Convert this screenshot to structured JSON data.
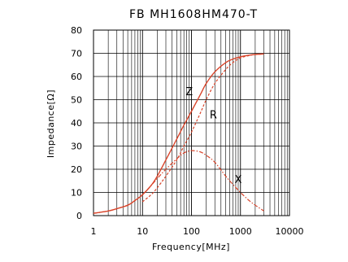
{
  "chart_data": {
    "type": "line",
    "title": "FB  MH1608HM470-T",
    "xlabel": "Frequency[MHz]",
    "ylabel": "Impedance[Ω]",
    "xscale": "log",
    "xlim": [
      1,
      10000
    ],
    "ylim": [
      0,
      80
    ],
    "x_ticks": [
      1,
      10,
      100,
      1000,
      10000
    ],
    "x_tick_labels": [
      "1",
      "10",
      "100",
      "1000",
      "10000"
    ],
    "y_ticks": [
      0,
      10,
      20,
      30,
      40,
      50,
      60,
      70,
      80
    ],
    "y_tick_labels": [
      "0",
      "10",
      "20",
      "30",
      "40",
      "50",
      "60",
      "70",
      "80"
    ],
    "grid": true,
    "legend": "inline labels",
    "colors": {
      "series": "#d9442a",
      "grid": "#000000"
    },
    "series": [
      {
        "name": "Z",
        "style": "solid",
        "x": [
          1,
          2,
          3,
          5,
          7,
          10,
          15,
          20,
          30,
          50,
          70,
          100,
          150,
          200,
          300,
          500,
          700,
          1000,
          1500,
          2000,
          3000
        ],
        "values": [
          1,
          2,
          3,
          4.5,
          6.5,
          9,
          13,
          17,
          24,
          33,
          39,
          45,
          52,
          57,
          62,
          66,
          67.5,
          68.5,
          69.2,
          69.5,
          69.7
        ]
      },
      {
        "name": "R",
        "style": "dashed",
        "x": [
          10,
          15,
          20,
          30,
          50,
          70,
          100,
          150,
          200,
          300,
          500,
          700,
          1000,
          1500,
          2000,
          3000
        ],
        "values": [
          6,
          9,
          12,
          17,
          24,
          30,
          36,
          44,
          50,
          57,
          63,
          66,
          68,
          69,
          69.5,
          69.7
        ]
      },
      {
        "name": "X",
        "style": "dash-dot",
        "x": [
          1,
          2,
          3,
          5,
          7,
          10,
          15,
          20,
          30,
          50,
          70,
          100,
          150,
          200,
          300,
          500,
          700,
          1000,
          1500,
          2000,
          3000
        ],
        "values": [
          1,
          2,
          3,
          4.5,
          6.5,
          9,
          13,
          16,
          20,
          24.5,
          27,
          28,
          27.5,
          26,
          23,
          17,
          13.5,
          10,
          6.5,
          4.5,
          2
        ]
      }
    ],
    "annotations": [
      {
        "text": "Z",
        "x": 90,
        "y": 52
      },
      {
        "text": "R",
        "x": 280,
        "y": 42
      },
      {
        "text": "X",
        "x": 900,
        "y": 14
      }
    ]
  }
}
